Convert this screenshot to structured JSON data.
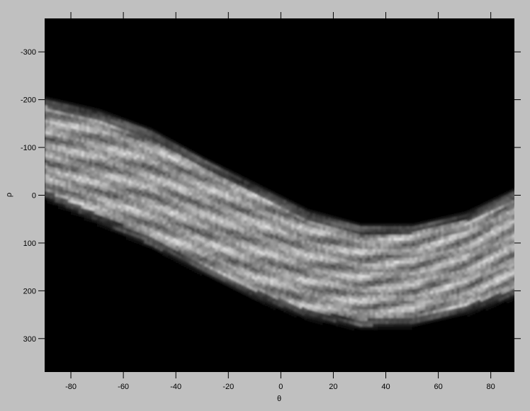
{
  "chart_data": {
    "type": "heatmap",
    "title": "",
    "xlabel": "θ",
    "ylabel": "ρ",
    "xlim": [
      -90,
      89
    ],
    "ylim": [
      -370,
      370
    ],
    "y_reversed": true,
    "colormap": "gray",
    "grid": false,
    "x_ticks": [
      -80,
      -60,
      -40,
      -20,
      0,
      20,
      40,
      60,
      80
    ],
    "x_tick_labels": [
      "-80",
      "-60",
      "-40",
      "-20",
      "0",
      "20",
      "40",
      "60",
      "80"
    ],
    "y_ticks": [
      -300,
      -200,
      -100,
      0,
      100,
      200,
      300
    ],
    "y_tick_labels": [
      "-300",
      "-200",
      "-100",
      "0",
      "100",
      "200",
      "300"
    ],
    "band": {
      "description_points_theta": [
        -90,
        -70,
        -50,
        -30,
        -10,
        10,
        30,
        50,
        70,
        89
      ],
      "upper_edge_rho": [
        -200,
        -175,
        -135,
        -75,
        -20,
        35,
        65,
        65,
        40,
        -10
      ],
      "lower_edge_rho": [
        0,
        50,
        100,
        155,
        210,
        250,
        270,
        265,
        240,
        205
      ],
      "peak_intensity": 0.9
    }
  }
}
